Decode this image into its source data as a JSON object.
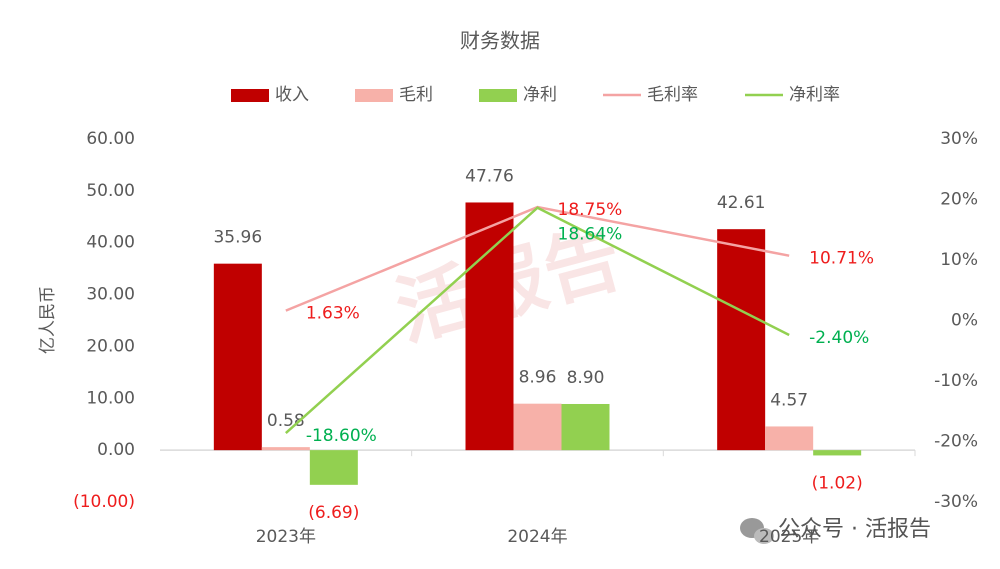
{
  "chart_data": {
    "type": "bar-line",
    "title": "财务数据",
    "y_label": "亿人民币",
    "categories": [
      "2023年",
      "2024年",
      "2025年"
    ],
    "series": [
      {
        "name": "收入",
        "type": "bar",
        "color": "#c00000",
        "values": [
          35.96,
          47.76,
          42.61
        ],
        "value_labels": [
          "35.96",
          "47.76",
          "42.61"
        ]
      },
      {
        "name": "毛利",
        "type": "bar",
        "color": "#f7b1a9",
        "values": [
          0.58,
          8.96,
          4.57
        ],
        "value_labels": [
          "0.58",
          "8.96",
          "4.57"
        ]
      },
      {
        "name": "净利",
        "type": "bar",
        "color": "#92d050",
        "values": [
          -6.69,
          8.9,
          -1.02
        ],
        "value_labels": [
          "(6.69)",
          "8.90",
          "(1.02)"
        ]
      },
      {
        "name": "毛利率",
        "type": "line",
        "axis": "y2",
        "color": "#f4a3a3",
        "label_color": "#ee1c1c",
        "values": [
          1.63,
          18.75,
          10.71
        ],
        "value_labels": [
          "1.63%",
          "18.75%",
          "10.71%"
        ]
      },
      {
        "name": "净利率",
        "type": "line",
        "axis": "y2",
        "color": "#92d050",
        "label_color": "#00b050",
        "values": [
          -18.6,
          18.64,
          -2.4
        ],
        "value_labels": [
          "-18.60%",
          "18.64%",
          "-2.40%"
        ]
      }
    ],
    "ylim": [
      -10,
      60
    ],
    "yticks": [
      {
        "value": -10,
        "label": "(10.00)"
      },
      {
        "value": 0,
        "label": "0.00"
      },
      {
        "value": 10,
        "label": "10.00"
      },
      {
        "value": 20,
        "label": "20.00"
      },
      {
        "value": 30,
        "label": "30.00"
      },
      {
        "value": 40,
        "label": "40.00"
      },
      {
        "value": 50,
        "label": "50.00"
      },
      {
        "value": 60,
        "label": "60.00"
      }
    ],
    "y2lim": [
      -30,
      30
    ],
    "y2ticks": [
      {
        "value": -30,
        "label": "-30%"
      },
      {
        "value": -20,
        "label": "-20%"
      },
      {
        "value": -10,
        "label": "-10%"
      },
      {
        "value": 0,
        "label": "0%"
      },
      {
        "value": 10,
        "label": "10%"
      },
      {
        "value": 20,
        "label": "20%"
      },
      {
        "value": 30,
        "label": "30%"
      }
    ],
    "grid": false,
    "legend": "top",
    "watermark": "活报告",
    "footer": "公众号 · 活报告"
  }
}
